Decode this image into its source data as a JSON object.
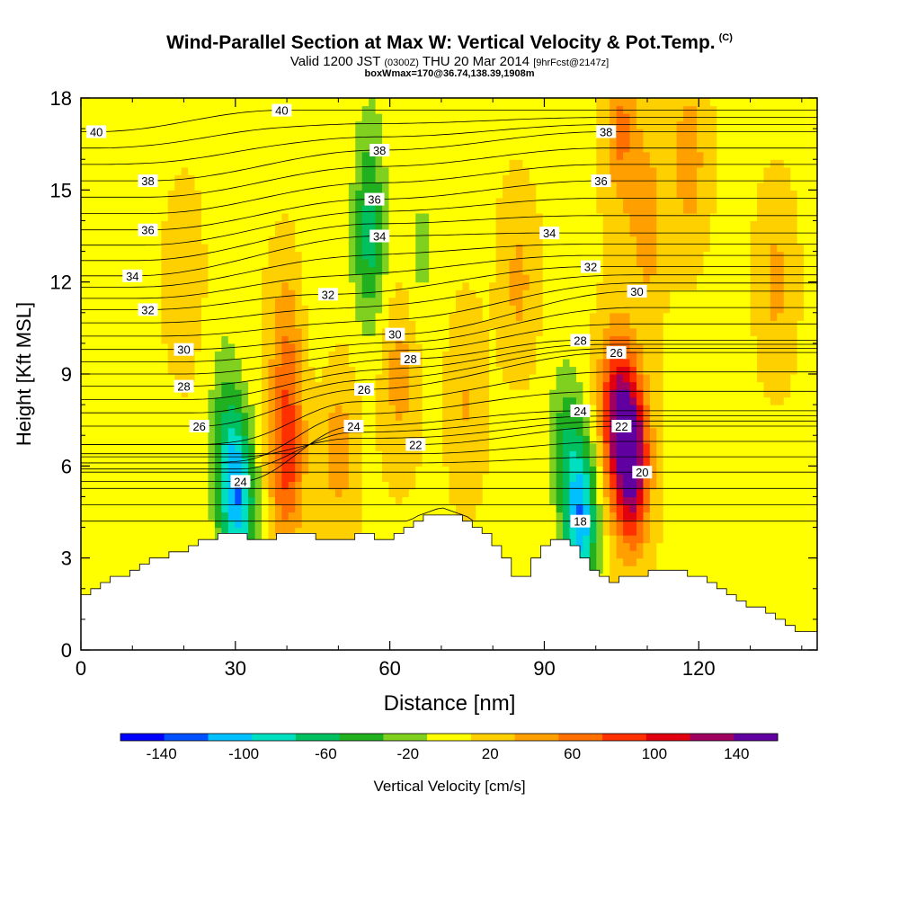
{
  "header": {
    "title": "Wind-Parallel Section at Max W: Vertical Velocity & Pot.Temp.",
    "title_tag": "(C)",
    "valid_prefix": "Valid 1200 JST",
    "valid_utc": "(0300Z)",
    "valid_date": "THU 20 Mar 2014",
    "forecast_tag": "[9hrFcst@2147z]",
    "info": "boxWmax=170@36.74,138.39,1908m"
  },
  "chart_data": {
    "type": "heatmap",
    "xlabel": "Distance [nm]",
    "ylabel": "Height [Kft MSL]",
    "xlim": [
      0,
      143
    ],
    "ylim": [
      0,
      18
    ],
    "x_ticks": [
      0,
      30,
      60,
      90,
      120
    ],
    "y_ticks": [
      0,
      3,
      6,
      9,
      12,
      15,
      18
    ],
    "colorbar": {
      "label": "Vertical Velocity [cm/s]",
      "tick_values": [
        -140,
        -100,
        -60,
        -20,
        20,
        60,
        100,
        140
      ],
      "bounds": [
        -160,
        160
      ],
      "colors": [
        "#0000ff",
        "#0050ff",
        "#00c0ff",
        "#00e0c0",
        "#00c060",
        "#20b020",
        "#80d020",
        "#ffff00",
        "#ffd000",
        "#ffa000",
        "#ff7000",
        "#ff3000",
        "#e00010",
        "#a00060",
        "#6000a0"
      ]
    },
    "terrain": [
      [
        0,
        1.6
      ],
      [
        5,
        2.2
      ],
      [
        10,
        2.6
      ],
      [
        15,
        3
      ],
      [
        20,
        3.2
      ],
      [
        25,
        3.6
      ],
      [
        30,
        3.8
      ],
      [
        35,
        3.6
      ],
      [
        40,
        3.8
      ],
      [
        50,
        3.6
      ],
      [
        55,
        3.8
      ],
      [
        60,
        3.6
      ],
      [
        65,
        4.2
      ],
      [
        70,
        4.5
      ],
      [
        75,
        4.2
      ],
      [
        80,
        3.6
      ],
      [
        83,
        3
      ],
      [
        85,
        2.2
      ],
      [
        88,
        2.8
      ],
      [
        90,
        3.4
      ],
      [
        93,
        3.8
      ],
      [
        97,
        3.2
      ],
      [
        100,
        2.6
      ],
      [
        103,
        2.2
      ],
      [
        107,
        2.4
      ],
      [
        112,
        2.6
      ],
      [
        118,
        2.5
      ],
      [
        125,
        2
      ],
      [
        130,
        1.5
      ],
      [
        135,
        1.1
      ],
      [
        140,
        0.6
      ],
      [
        143,
        0.5
      ]
    ],
    "velocity_features": [
      {
        "x": 40,
        "y": 6.3,
        "value": 80
      },
      {
        "x": 107,
        "y": 6.2,
        "value": 150
      },
      {
        "x": 104,
        "y": 7.8,
        "value": 100
      },
      {
        "x": 97,
        "y": 4.3,
        "value": -120
      },
      {
        "x": 31,
        "y": 4.8,
        "value": -80
      },
      {
        "x": 29,
        "y": 5.5,
        "value": -60
      },
      {
        "x": 56,
        "y": 13,
        "value": -60
      },
      {
        "x": 56,
        "y": 16,
        "value": -30
      },
      {
        "x": 66,
        "y": 13,
        "value": -25
      },
      {
        "x": 94,
        "y": 7,
        "value": -45
      },
      {
        "x": 28,
        "y": 8,
        "value": -30
      },
      {
        "x": 30,
        "y": 14,
        "value": -10
      },
      {
        "x": 5,
        "y": 8,
        "value": -10
      },
      {
        "x": 125,
        "y": 8,
        "value": -10
      },
      {
        "x": 120,
        "y": 3,
        "value": -5
      },
      {
        "x": 46,
        "y": 12,
        "value": -15
      },
      {
        "x": 84,
        "y": 5,
        "value": -15
      },
      {
        "x": 110,
        "y": 14,
        "value": 40
      },
      {
        "x": 105,
        "y": 17,
        "value": 50
      },
      {
        "x": 118,
        "y": 16,
        "value": 40
      },
      {
        "x": 62,
        "y": 9,
        "value": 35
      },
      {
        "x": 75,
        "y": 8,
        "value": 25
      },
      {
        "x": 50,
        "y": 6.5,
        "value": 35
      },
      {
        "x": 40,
        "y": 10,
        "value": 40
      },
      {
        "x": 85,
        "y": 12,
        "value": 30
      },
      {
        "x": 135,
        "y": 12,
        "value": 30
      },
      {
        "x": 20,
        "y": 12,
        "value": 20
      }
    ],
    "theta_isolines": [
      {
        "value": 18,
        "label_x": 97,
        "label_y": 4.2
      },
      {
        "value": 20,
        "label_x": 109,
        "label_y": 5.8
      },
      {
        "value": 22,
        "label_x": 65,
        "label_y": 6.7
      },
      {
        "value": 22,
        "label_x": 105,
        "label_y": 7.3
      },
      {
        "value": 24,
        "label_x": 31,
        "label_y": 5.5
      },
      {
        "value": 24,
        "label_x": 53,
        "label_y": 7.3
      },
      {
        "value": 24,
        "label_x": 97,
        "label_y": 7.8
      },
      {
        "value": 26,
        "label_x": 23,
        "label_y": 7.3
      },
      {
        "value": 26,
        "label_x": 55,
        "label_y": 8.5
      },
      {
        "value": 26,
        "label_x": 104,
        "label_y": 9.7
      },
      {
        "value": 28,
        "label_x": 20,
        "label_y": 8.6
      },
      {
        "value": 28,
        "label_x": 64,
        "label_y": 9.5
      },
      {
        "value": 28,
        "label_x": 97,
        "label_y": 10.1
      },
      {
        "value": 30,
        "label_x": 20,
        "label_y": 9.8
      },
      {
        "value": 30,
        "label_x": 61,
        "label_y": 10.3
      },
      {
        "value": 30,
        "label_x": 108,
        "label_y": 11.7
      },
      {
        "value": 32,
        "label_x": 13,
        "label_y": 11.1
      },
      {
        "value": 32,
        "label_x": 48,
        "label_y": 11.6
      },
      {
        "value": 32,
        "label_x": 99,
        "label_y": 12.5
      },
      {
        "value": 34,
        "label_x": 10,
        "label_y": 12.2
      },
      {
        "value": 34,
        "label_x": 58,
        "label_y": 13.5
      },
      {
        "value": 34,
        "label_x": 91,
        "label_y": 13.6
      },
      {
        "value": 36,
        "label_x": 13,
        "label_y": 13.7
      },
      {
        "value": 36,
        "label_x": 57,
        "label_y": 14.7
      },
      {
        "value": 36,
        "label_x": 101,
        "label_y": 15.3
      },
      {
        "value": 38,
        "label_x": 13,
        "label_y": 15.3
      },
      {
        "value": 38,
        "label_x": 58,
        "label_y": 16.3
      },
      {
        "value": 38,
        "label_x": 102,
        "label_y": 16.9
      },
      {
        "value": 40,
        "label_x": 3,
        "label_y": 16.9
      },
      {
        "value": 40,
        "label_x": 39,
        "label_y": 17.6
      }
    ]
  }
}
